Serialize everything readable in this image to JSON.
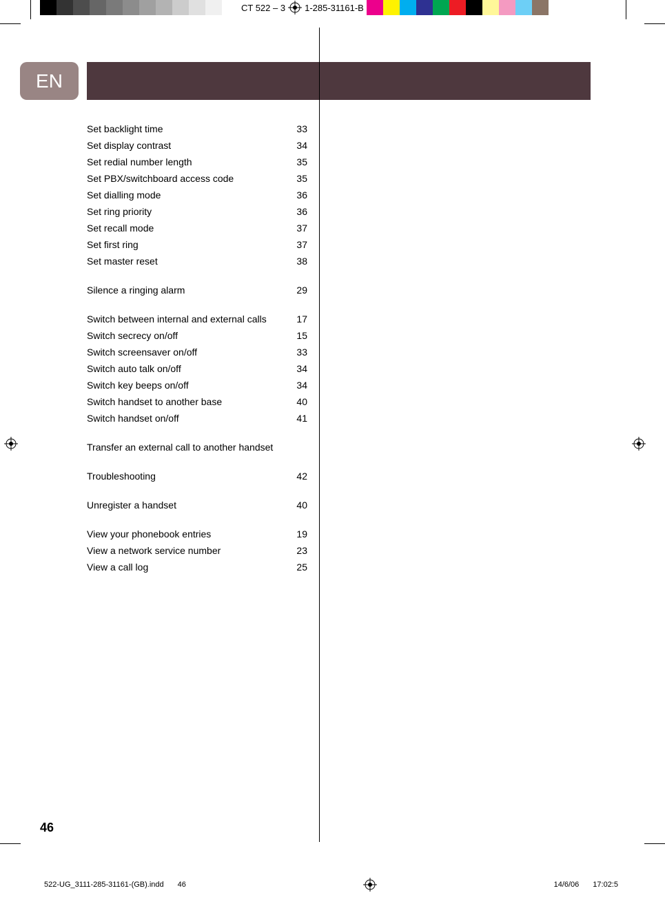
{
  "header": {
    "text_left": "CT 522  –   3",
    "text_right": "1-285-31161-B",
    "grayscale_swatches": [
      "#000000",
      "#333333",
      "#4d4d4d",
      "#666666",
      "#7a7a7a",
      "#8c8c8c",
      "#a0a0a0",
      "#b3b3b3",
      "#cccccc",
      "#e0e0e0",
      "#f0f0f0",
      "#ffffff"
    ],
    "color_swatches": [
      "#ec008c",
      "#fff200",
      "#00aeef",
      "#2e3192",
      "#00a651",
      "#ed1c24",
      "#000000",
      "#fff799",
      "#f49ac1",
      "#6dcff6",
      "#8b7566"
    ]
  },
  "lang_badge": "EN",
  "index": {
    "groups": [
      {
        "rows": [
          {
            "label": "Set backlight time",
            "page": "33"
          },
          {
            "label": "Set display contrast",
            "page": "34"
          },
          {
            "label": "Set redial number length",
            "page": "35"
          },
          {
            "label": "Set PBX/switchboard access code",
            "page": "35"
          },
          {
            "label": "Set dialling mode",
            "page": "36"
          },
          {
            "label": "Set ring priority",
            "page": "36"
          },
          {
            "label": "Set recall mode",
            "page": "37"
          },
          {
            "label": "Set first ring",
            "page": "37"
          },
          {
            "label": "Set master reset",
            "page": "38"
          }
        ]
      },
      {
        "rows": [
          {
            "label": "Silence a ringing alarm",
            "page": "29"
          }
        ]
      },
      {
        "rows": [
          {
            "label": "Switch between internal and external calls",
            "page": "17"
          },
          {
            "label": "Switch secrecy on/off",
            "page": "15"
          },
          {
            "label": "Switch screensaver on/off",
            "page": "33"
          },
          {
            "label": "Switch auto talk on/off",
            "page": "34"
          },
          {
            "label": "Switch key beeps on/off",
            "page": "34"
          },
          {
            "label": "Switch handset to another base",
            "page": "40"
          },
          {
            "label": "Switch handset on/off",
            "page": "41"
          }
        ]
      },
      {
        "rows": [
          {
            "label": "Transfer an external call to another handset",
            "page": ""
          }
        ]
      },
      {
        "rows": [
          {
            "label": "Troubleshooting",
            "page": "42"
          }
        ]
      },
      {
        "rows": [
          {
            "label": "Unregister a handset",
            "page": "40"
          }
        ]
      },
      {
        "rows": [
          {
            "label": "View your phonebook entries",
            "page": "19"
          },
          {
            "label": "View a network service number",
            "page": "23"
          },
          {
            "label": "View a call log",
            "page": "25"
          }
        ]
      }
    ]
  },
  "page_number": "46",
  "footer": {
    "filename": "522-UG_3111-285-31161-(GB).indd",
    "page": "46",
    "date": "14/6/06",
    "time": "17:02:5"
  }
}
